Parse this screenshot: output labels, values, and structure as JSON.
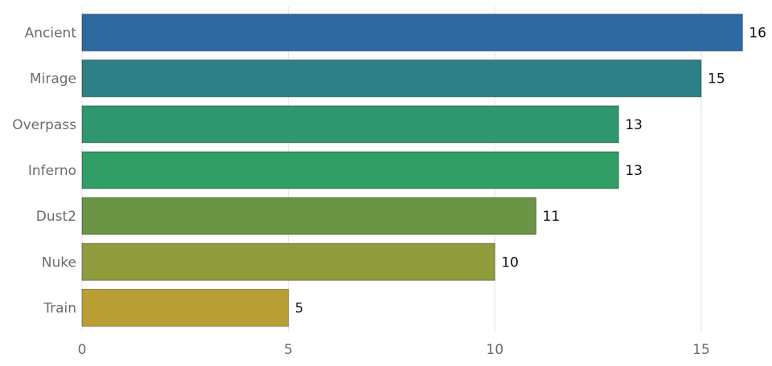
{
  "chart_data": {
    "type": "bar",
    "orientation": "horizontal",
    "title": "",
    "xlabel": "",
    "ylabel": "",
    "categories": [
      "Ancient",
      "Mirage",
      "Overpass",
      "Inferno",
      "Dust2",
      "Nuke",
      "Train"
    ],
    "values": [
      16,
      15,
      13,
      13,
      11,
      10,
      5
    ],
    "colors": [
      "#2e6aa1",
      "#2f7f86",
      "#2f9770",
      "#319e66",
      "#6b9444",
      "#8f9b3c",
      "#b99e34"
    ],
    "xlim": [
      0,
      16.5
    ],
    "xticks": [
      0,
      5,
      10,
      15
    ],
    "grid": true,
    "legend": "none"
  }
}
